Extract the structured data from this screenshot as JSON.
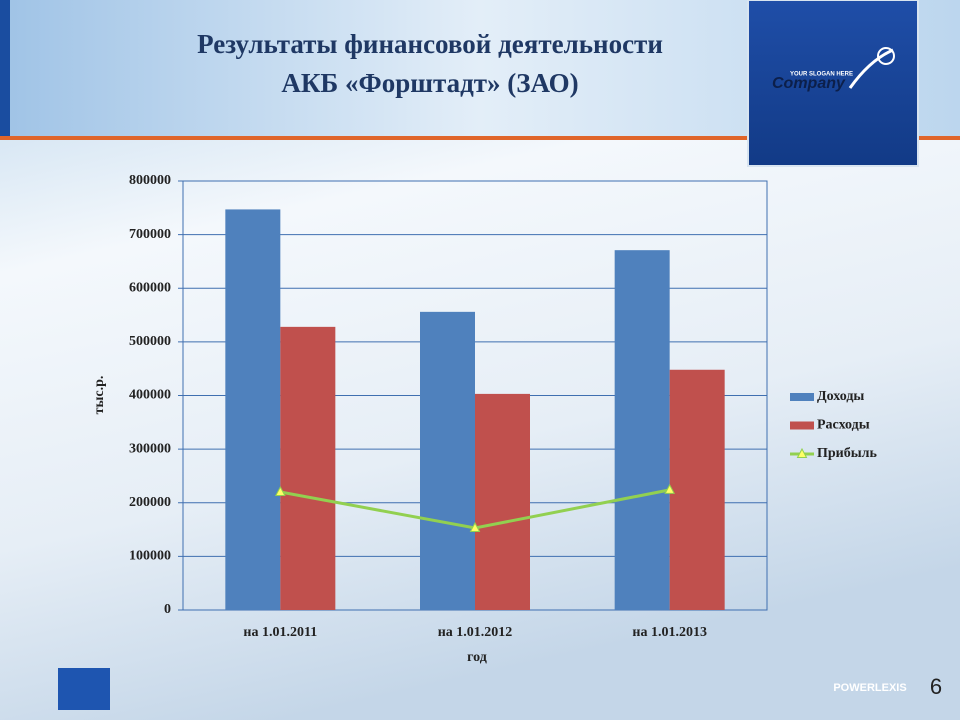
{
  "slide": {
    "title": [
      "Результаты финансовой деятельности",
      "АКБ «Форштадт» (ЗАО)"
    ],
    "logo_slogan": "YOUR SLOGAN HERE",
    "logo_text": "Company",
    "brand": "POWERLEXIS",
    "page_number": 6
  },
  "chart_data": {
    "type": "bar",
    "categories": [
      "на 1.01.2011",
      "на 1.01.2012",
      "на 1.01.2013"
    ],
    "x_label": "год",
    "y_label": "тыс.р.",
    "series": [
      {
        "name": "Доходы",
        "color": "#4f81bd",
        "values": [
          747000,
          556000,
          671000
        ]
      },
      {
        "name": "Расходы",
        "color": "#c0504d",
        "values": [
          528000,
          403000,
          448000
        ]
      },
      {
        "name": "Прибыль",
        "color": "#92d050",
        "type": "line",
        "values": [
          220000,
          153000,
          224000
        ]
      }
    ],
    "ylim": [
      0,
      800000
    ],
    "yticks": [
      0,
      100000,
      200000,
      300000,
      400000,
      500000,
      600000,
      700000,
      800000
    ],
    "grid": true,
    "legend": "right"
  }
}
